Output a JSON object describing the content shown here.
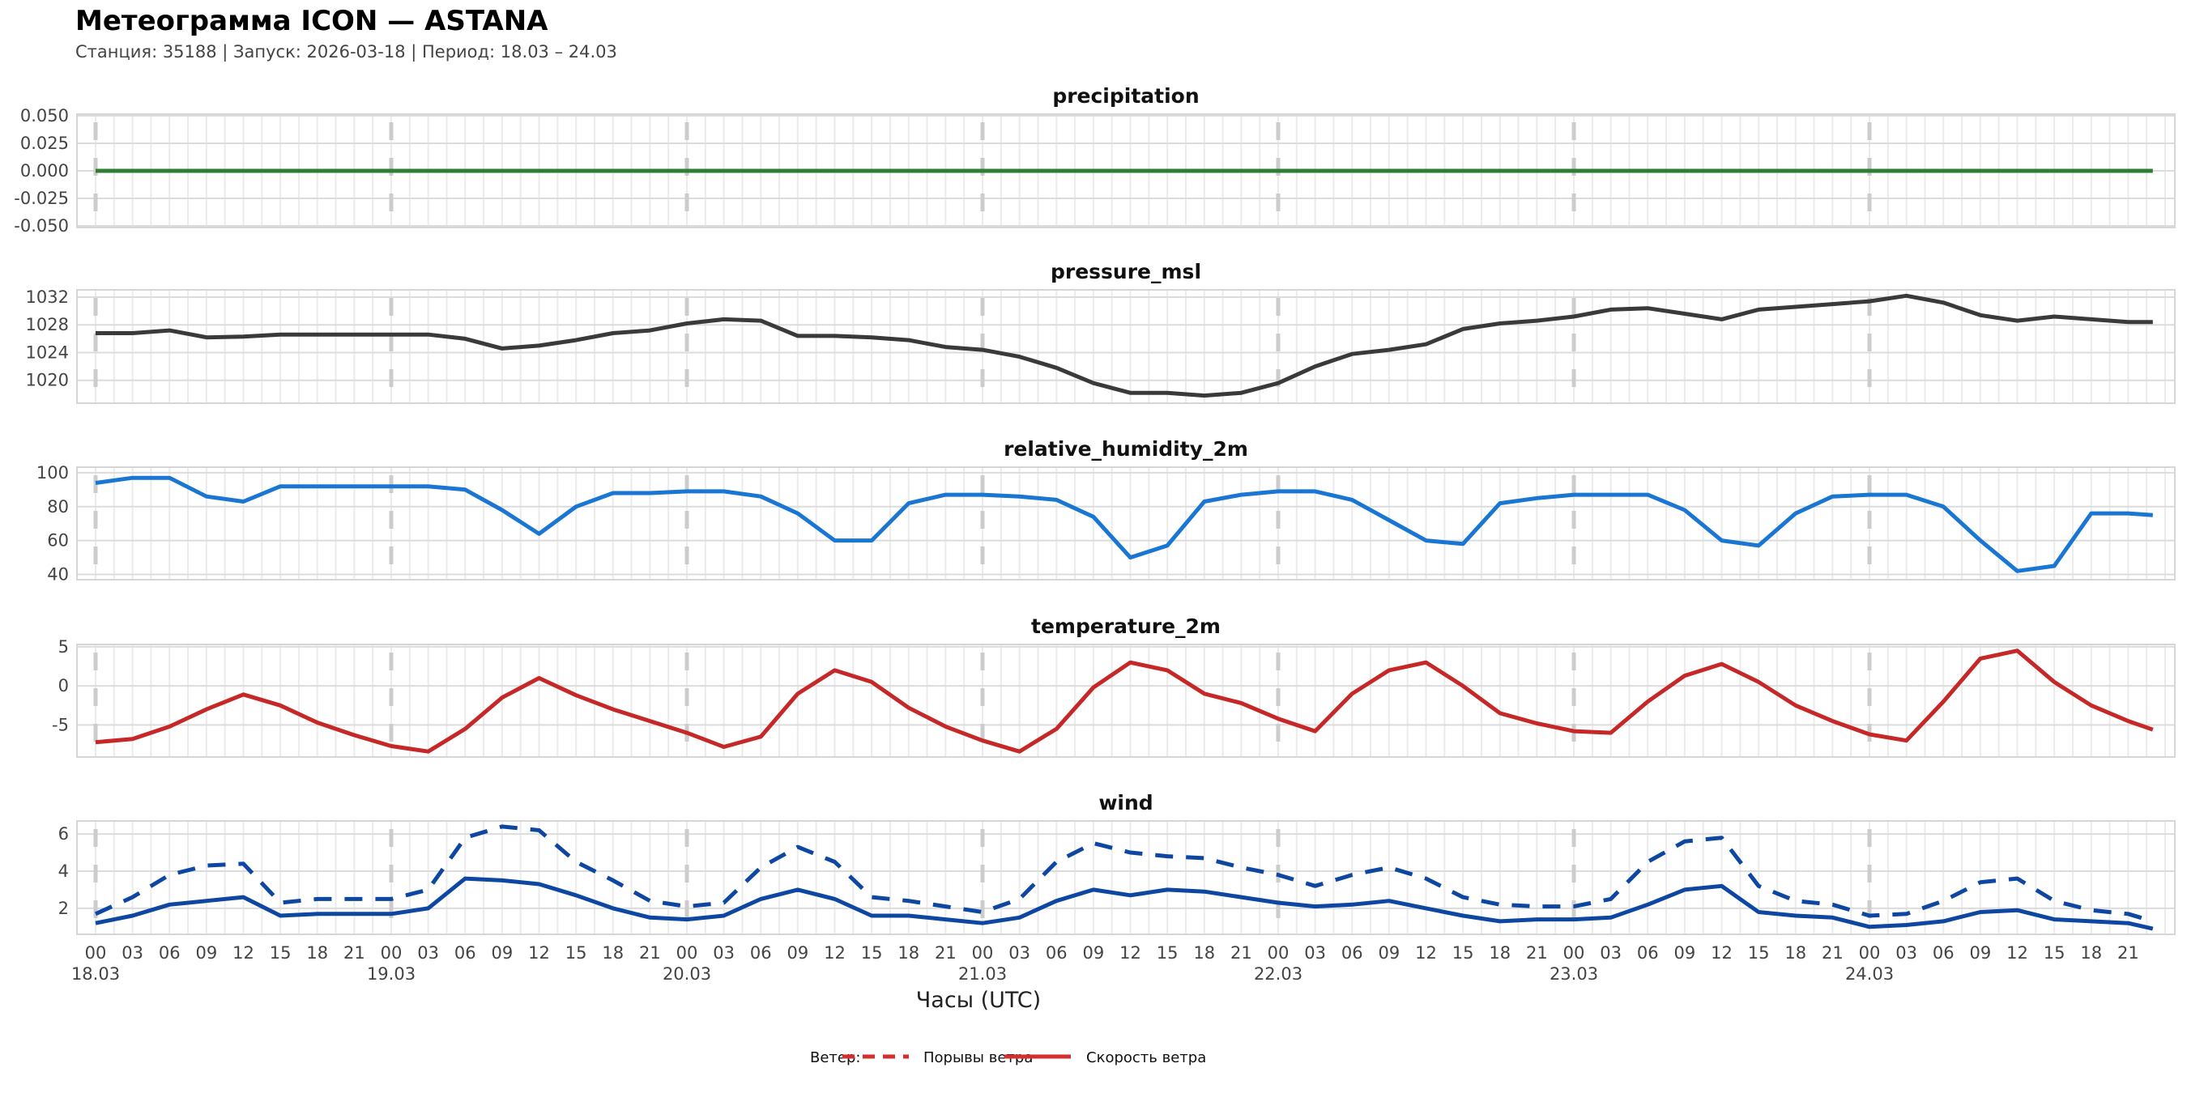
{
  "header": {
    "title": "Метеограмма ICON — ASTANA",
    "subtitle": "Станция: 35188  | Запуск: 2026-03-18  | Период: 18.03 – 24.03"
  },
  "chart_data": {
    "type": "line",
    "x_label": "Часы (UTC)",
    "x_hours": [
      0,
      3,
      6,
      9,
      12,
      15,
      18,
      21,
      24,
      27,
      30,
      33,
      36,
      39,
      42,
      45,
      48,
      51,
      54,
      57,
      60,
      63,
      66,
      69,
      72,
      75,
      78,
      81,
      84,
      87,
      90,
      93,
      96,
      99,
      102,
      105,
      108,
      111,
      114,
      117,
      120,
      123,
      126,
      129,
      132,
      135,
      138,
      141,
      144,
      147,
      150,
      153,
      156,
      159,
      162,
      165,
      167
    ],
    "x_tick_labels": [
      "00",
      "03",
      "06",
      "09",
      "12",
      "15",
      "18",
      "21"
    ],
    "dates": [
      "18.03",
      "19.03",
      "20.03",
      "21.03",
      "22.03",
      "23.03",
      "24.03"
    ],
    "panels": [
      {
        "title": "precipitation",
        "color": "#2e7d32",
        "ylim": [
          -0.0515,
          0.0515
        ],
        "yticks": [
          "0.050",
          "0.025",
          "0.000",
          "-0.025",
          "-0.050"
        ],
        "ytick_values": [
          0.05,
          0.025,
          0,
          -0.025,
          -0.05
        ],
        "series": [
          {
            "name": "precipitation",
            "style": "solid",
            "values": [
              0,
              0,
              0,
              0,
              0,
              0,
              0,
              0,
              0,
              0,
              0,
              0,
              0,
              0,
              0,
              0,
              0,
              0,
              0,
              0,
              0,
              0,
              0,
              0,
              0,
              0,
              0,
              0,
              0,
              0,
              0,
              0,
              0,
              0,
              0,
              0,
              0,
              0,
              0,
              0,
              0,
              0,
              0,
              0,
              0,
              0,
              0,
              0,
              0,
              0,
              0,
              0,
              0,
              0,
              0,
              0,
              0
            ]
          }
        ]
      },
      {
        "title": "pressure_msl",
        "color": "#3a3a3a",
        "ylim": [
          1016.7,
          1033.05
        ],
        "yticks": [
          "1032",
          "1028",
          "1024",
          "1020"
        ],
        "ytick_values": [
          1032,
          1028,
          1024,
          1020
        ],
        "series": [
          {
            "name": "pressure_msl",
            "style": "solid",
            "values": [
              1026.8,
              1026.8,
              1027.2,
              1026.2,
              1026.3,
              1026.6,
              1026.6,
              1026.6,
              1026.6,
              1026.6,
              1026.0,
              1024.6,
              1025.0,
              1025.8,
              1026.8,
              1027.2,
              1028.2,
              1028.8,
              1028.6,
              1026.4,
              1026.4,
              1026.2,
              1025.8,
              1024.8,
              1024.4,
              1023.4,
              1021.8,
              1019.6,
              1018.2,
              1018.2,
              1017.8,
              1018.2,
              1019.6,
              1022.0,
              1023.8,
              1024.4,
              1025.2,
              1027.4,
              1028.2,
              1028.6,
              1029.2,
              1030.2,
              1030.4,
              1029.6,
              1028.8,
              1030.2,
              1030.6,
              1031.0,
              1031.4,
              1032.2,
              1031.2,
              1029.4,
              1028.6,
              1029.2,
              1028.8,
              1028.4,
              1028.4
            ]
          }
        ]
      },
      {
        "title": "relative_humidity_2m",
        "color": "#1976d2",
        "ylim": [
          36.9,
          103.3
        ],
        "yticks": [
          "100",
          "80",
          "60",
          "40"
        ],
        "ytick_values": [
          100,
          80,
          60,
          40
        ],
        "series": [
          {
            "name": "relative_humidity_2m",
            "style": "solid",
            "values": [
              94,
              97,
              97,
              86,
              83,
              92,
              92,
              92,
              92,
              92,
              90,
              78,
              64,
              80,
              88,
              88,
              89,
              89,
              86,
              76,
              60,
              60,
              82,
              87,
              87,
              86,
              84,
              74,
              50,
              57,
              83,
              87,
              89,
              89,
              84,
              72,
              60,
              58,
              82,
              85,
              87,
              87,
              87,
              78,
              60,
              57,
              76,
              86,
              87,
              87,
              80,
              60,
              42,
              45,
              76,
              76,
              75
            ]
          }
        ]
      },
      {
        "title": "temperature_2m",
        "color": "#c62828",
        "ylim": [
          -9.1,
          5.3
        ],
        "yticks": [
          "5",
          "0",
          "-5"
        ],
        "ytick_values": [
          5,
          0,
          -5
        ],
        "series": [
          {
            "name": "temperature_2m",
            "style": "solid",
            "values": [
              -7.2,
              -6.8,
              -5.2,
              -3.0,
              -1.1,
              -2.5,
              -4.7,
              -6.3,
              -7.7,
              -8.4,
              -5.5,
              -1.5,
              1.0,
              -1.2,
              -3.0,
              -4.5,
              -6.0,
              -7.8,
              -6.5,
              -1.0,
              2.0,
              0.5,
              -2.8,
              -5.2,
              -7.0,
              -8.4,
              -5.5,
              -0.2,
              3.0,
              2.0,
              -1.0,
              -2.2,
              -4.2,
              -5.8,
              -1.0,
              2.0,
              3.0,
              0.0,
              -3.5,
              -4.8,
              -5.8,
              -6.0,
              -2.0,
              1.3,
              2.8,
              0.5,
              -2.5,
              -4.5,
              -6.2,
              -7.0,
              -2.0,
              3.5,
              4.5,
              0.5,
              -2.5,
              -4.5,
              -5.6
            ]
          }
        ]
      },
      {
        "title": "wind",
        "color": "#0d47a1",
        "ylim": [
          0.6,
          6.7
        ],
        "yticks": [
          "6",
          "4",
          "2"
        ],
        "ytick_values": [
          6,
          4,
          2
        ],
        "series": [
          {
            "name": "Порывы ветра",
            "style": "dashed",
            "values": [
              1.7,
              2.6,
              3.8,
              4.3,
              4.4,
              2.3,
              2.5,
              2.5,
              2.5,
              3.0,
              5.8,
              6.4,
              6.2,
              4.5,
              3.5,
              2.4,
              2.1,
              2.3,
              4.2,
              5.3,
              4.5,
              2.6,
              2.4,
              2.1,
              1.8,
              2.5,
              4.5,
              5.5,
              5.0,
              4.8,
              4.7,
              4.2,
              3.8,
              3.2,
              3.8,
              4.2,
              3.6,
              2.6,
              2.2,
              2.1,
              2.1,
              2.5,
              4.5,
              5.6,
              5.8,
              3.2,
              2.4,
              2.2,
              1.6,
              1.7,
              2.4,
              3.4,
              3.6,
              2.4,
              1.9,
              1.7,
              1.3
            ]
          },
          {
            "name": "Скорость ветра",
            "style": "solid",
            "values": [
              1.2,
              1.6,
              2.2,
              2.4,
              2.6,
              1.6,
              1.7,
              1.7,
              1.7,
              2.0,
              3.6,
              3.5,
              3.3,
              2.7,
              2.0,
              1.5,
              1.4,
              1.6,
              2.5,
              3.0,
              2.5,
              1.6,
              1.6,
              1.4,
              1.2,
              1.5,
              2.4,
              3.0,
              2.7,
              3.0,
              2.9,
              2.6,
              2.3,
              2.1,
              2.2,
              2.4,
              2.0,
              1.6,
              1.3,
              1.4,
              1.4,
              1.5,
              2.2,
              3.0,
              3.2,
              1.8,
              1.6,
              1.5,
              1.0,
              1.1,
              1.3,
              1.8,
              1.9,
              1.4,
              1.3,
              1.2,
              0.9
            ]
          }
        ]
      }
    ],
    "legend": {
      "label": "Ветер:",
      "color": "#d32f2f",
      "items": [
        {
          "name": "Порывы ветра",
          "style": "dashed"
        },
        {
          "name": "Скорость ветра",
          "style": "solid"
        }
      ],
      "placement": "bottom-center"
    }
  }
}
